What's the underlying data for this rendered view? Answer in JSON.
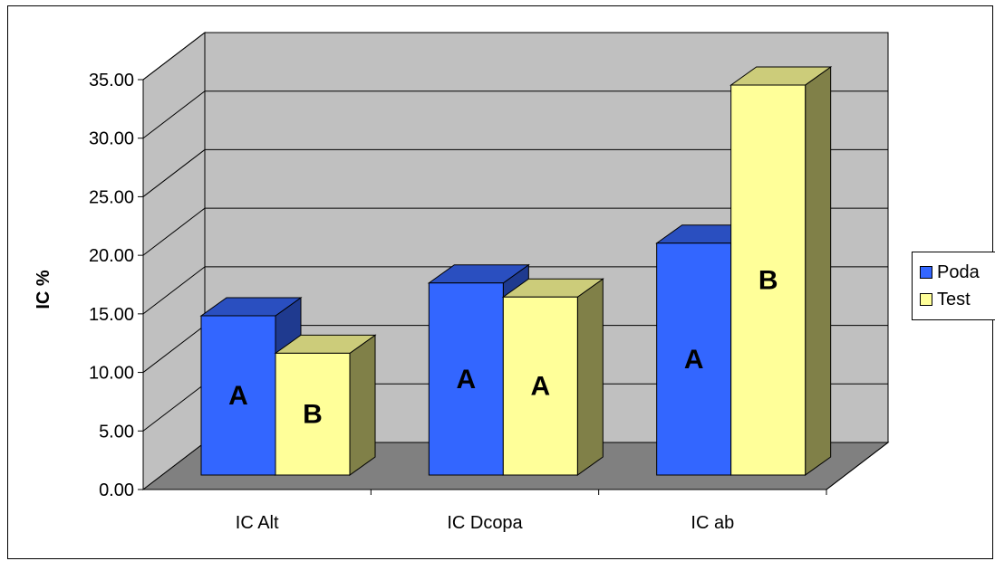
{
  "chart_data": {
    "type": "bar",
    "style": "3d-clustered-column",
    "categories": [
      "IC Alt",
      "IC Dcopa",
      "IC ab"
    ],
    "series": [
      {
        "name": "Poda",
        "values": [
          13.6,
          16.4,
          19.8
        ],
        "labels": [
          "A",
          "A",
          "A"
        ],
        "color": "#3366FF"
      },
      {
        "name": "Test",
        "values": [
          10.4,
          15.2,
          33.3
        ],
        "labels": [
          "B",
          "A",
          "B"
        ],
        "color": "#FFFF99"
      }
    ],
    "title": "",
    "xlabel": "",
    "ylabel": "IC %",
    "ylim": [
      0,
      35
    ],
    "yticks": [
      "0.00",
      "5.00",
      "10.00",
      "15.00",
      "20.00",
      "25.00",
      "30.00",
      "35.00"
    ],
    "grid": true,
    "legend_position": "right",
    "colors": {
      "wall": "#C0C0C0",
      "floor": "#808080",
      "poda_top": "#2A4FC0",
      "poda_side": "#1F3A8F",
      "test_top": "#CCCC7A",
      "test_side": "#808048"
    }
  }
}
